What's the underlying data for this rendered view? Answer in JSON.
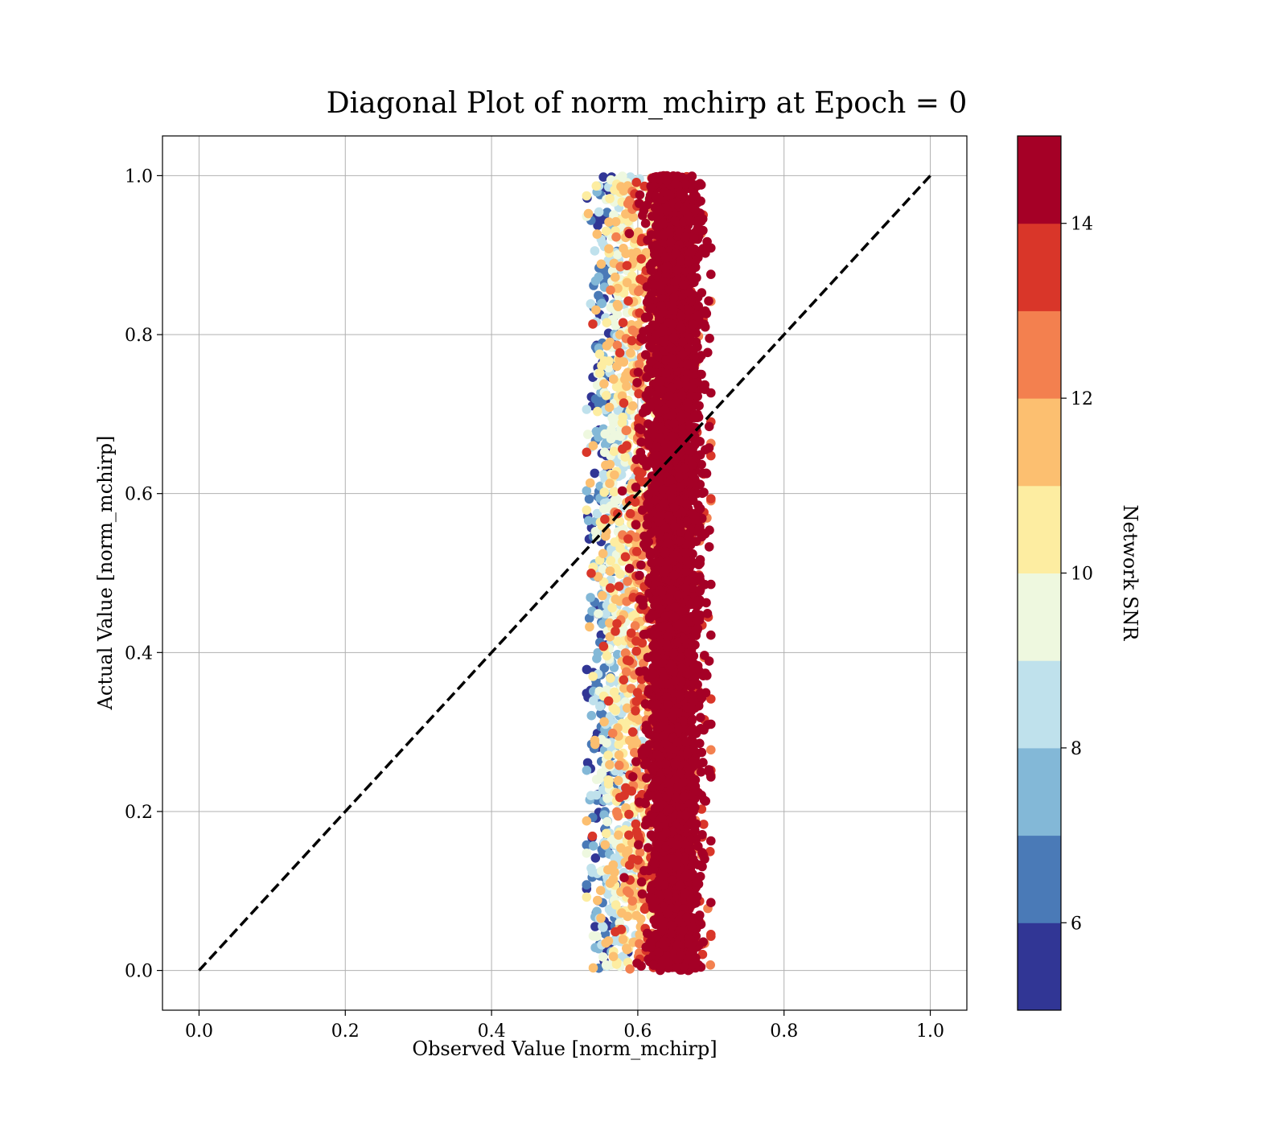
{
  "chart_data": {
    "type": "scatter",
    "title": "Diagonal Plot of norm_mchirp at Epoch = 0",
    "xlabel": "Observed Value [norm_mchirp]",
    "ylabel": "Actual Value [norm_mchirp]",
    "xlim": [
      -0.05,
      1.05
    ],
    "ylim": [
      -0.05,
      1.05
    ],
    "x_ticks": [
      "0.0",
      "0.2",
      "0.4",
      "0.6",
      "0.8",
      "1.0"
    ],
    "y_ticks": [
      "0.0",
      "0.2",
      "0.4",
      "0.6",
      "0.8",
      "1.0"
    ],
    "grid": true,
    "reference_line": {
      "x": [
        0,
        1
      ],
      "y": [
        0,
        1
      ],
      "style": "dashed",
      "color": "#000000"
    },
    "colorbar": {
      "label": "Network SNR",
      "range": [
        5,
        15
      ],
      "ticks": [
        "6",
        "8",
        "10",
        "12",
        "14"
      ],
      "levels": [
        5,
        6,
        7,
        8,
        9,
        10,
        11,
        12,
        13,
        14,
        15
      ],
      "colors": [
        "#313695",
        "#4a7ab7",
        "#83b8d7",
        "#bfe1ec",
        "#eef8df",
        "#fdeda1",
        "#fcbf70",
        "#f3804f",
        "#d93629",
        "#a50026"
      ]
    },
    "cluster": {
      "description_of_distribution": "points concentrated in a vertical band",
      "observed_range": [
        0.53,
        0.7
      ],
      "observed_center": 0.65,
      "actual_range": [
        0.0,
        1.0
      ],
      "snr_range": [
        5,
        15
      ]
    }
  }
}
